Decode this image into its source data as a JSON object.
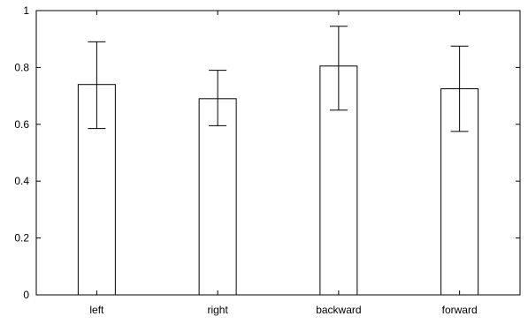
{
  "chart_data": {
    "type": "bar",
    "categories": [
      "left",
      "right",
      "backward",
      "forward"
    ],
    "values": [
      0.74,
      0.69,
      0.805,
      0.725
    ],
    "error_low": [
      0.585,
      0.595,
      0.65,
      0.575
    ],
    "error_high": [
      0.89,
      0.79,
      0.945,
      0.875
    ],
    "ylim": [
      0,
      1
    ],
    "yticks": [
      "0",
      "0.2",
      "0.4",
      "0.6",
      "0.8",
      "1"
    ],
    "grid": false,
    "title": "",
    "xlabel": "",
    "ylabel": "",
    "colors": {
      "bar_fill": "#ffffff",
      "bar_stroke": "#000000",
      "axis": "#000000"
    }
  }
}
